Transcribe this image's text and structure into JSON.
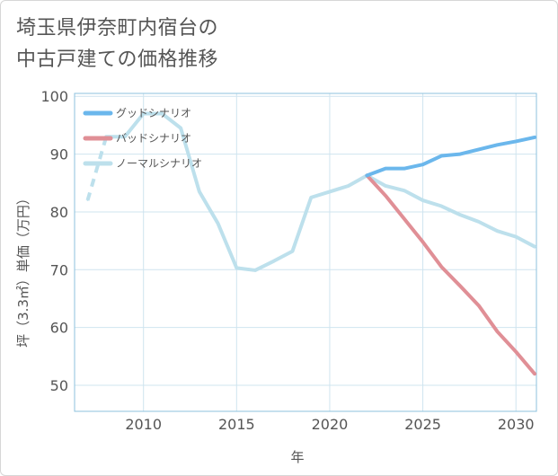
{
  "page": {
    "title_line1": "埼玉県伊奈町内宿台の",
    "title_line2": "中古戸建ての価格推移"
  },
  "chart_data": {
    "type": "line",
    "title": "埼玉県伊奈町内宿台の中古戸建ての価格推移",
    "xlabel": "年",
    "ylabel": "坪（3.3㎡）単価（万円）",
    "xlim": [
      2006.3,
      2031.1
    ],
    "ylim": [
      45.5,
      100.5
    ],
    "xticks": [
      2010,
      2015,
      2020,
      2025,
      2030
    ],
    "yticks": [
      50,
      60,
      70,
      80,
      90,
      100
    ],
    "grid": true,
    "legend_position": "top-left",
    "series": [
      {
        "name": "グッドシナリオ",
        "color": "#6bb7ec",
        "x": [
          2022,
          2023,
          2024,
          2025,
          2026,
          2027,
          2028,
          2029,
          2030,
          2031
        ],
        "values": [
          86.3,
          87.5,
          87.5,
          88.2,
          89.7,
          90.0,
          90.8,
          91.6,
          92.2,
          92.9
        ]
      },
      {
        "name": "バッドシナリオ",
        "color": "#e08f96",
        "x": [
          2022,
          2023,
          2024,
          2025,
          2026,
          2027,
          2028,
          2029,
          2030,
          2031
        ],
        "values": [
          86.3,
          82.8,
          78.8,
          74.8,
          70.5,
          67.2,
          63.8,
          59.3,
          55.8,
          52.0
        ]
      },
      {
        "name": "ノーマルシナリオ",
        "color": "#bde0ec",
        "dashed_x_until": 2008,
        "x": [
          2007,
          2008,
          2009,
          2010,
          2011,
          2012,
          2013,
          2014,
          2015,
          2016,
          2017,
          2018,
          2019,
          2020,
          2021,
          2022,
          2023,
          2024,
          2025,
          2026,
          2027,
          2028,
          2029,
          2030,
          2031
        ],
        "values": [
          82.0,
          93.0,
          93.0,
          97.0,
          97.0,
          94.5,
          83.5,
          78.0,
          70.3,
          69.9,
          71.5,
          73.2,
          82.5,
          83.5,
          84.5,
          86.3,
          84.5,
          83.7,
          82.0,
          81.0,
          79.5,
          78.3,
          76.7,
          75.7,
          74.0
        ]
      }
    ]
  }
}
